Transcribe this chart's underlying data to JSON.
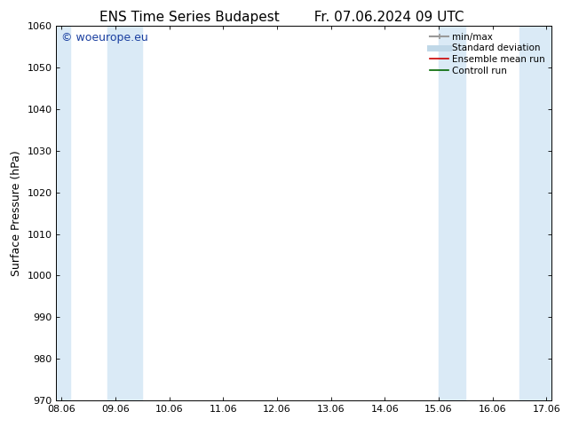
{
  "title_left": "ENS Time Series Budapest",
  "title_right": "Fr. 07.06.2024 09 UTC",
  "ylabel": "Surface Pressure (hPa)",
  "ylim": [
    970,
    1060
  ],
  "yticks": [
    970,
    980,
    990,
    1000,
    1010,
    1020,
    1030,
    1040,
    1050,
    1060
  ],
  "xtick_labels": [
    "08.06",
    "09.06",
    "10.06",
    "11.06",
    "12.06",
    "13.06",
    "14.06",
    "15.06",
    "16.06",
    "17.06"
  ],
  "xlim_min": 0,
  "xlim_max": 9,
  "xtick_positions": [
    0,
    1,
    2,
    3,
    4,
    5,
    6,
    7,
    8,
    9
  ],
  "shaded_bands": [
    {
      "xmin": -0.1,
      "xmax": 0.15,
      "color": "#daeaf6"
    },
    {
      "xmin": 0.85,
      "xmax": 1.5,
      "color": "#daeaf6"
    },
    {
      "xmin": 7.0,
      "xmax": 7.5,
      "color": "#daeaf6"
    },
    {
      "xmin": 8.5,
      "xmax": 9.1,
      "color": "#daeaf6"
    }
  ],
  "watermark_text": "© woeurope.eu",
  "watermark_color": "#1a3fa0",
  "background_color": "#ffffff",
  "legend_entries": [
    {
      "label": "min/max",
      "color": "#999999",
      "linestyle": "solid",
      "linewidth": 1.5
    },
    {
      "label": "Standard deviation",
      "color": "#c0d8e8",
      "linestyle": "solid",
      "linewidth": 5
    },
    {
      "label": "Ensemble mean run",
      "color": "#cc0000",
      "linestyle": "solid",
      "linewidth": 1.2
    },
    {
      "label": "Controll run",
      "color": "#006600",
      "linestyle": "solid",
      "linewidth": 1.2
    }
  ],
  "title_fontsize": 11,
  "ylabel_fontsize": 9,
  "tick_fontsize": 8,
  "legend_fontsize": 7.5,
  "watermark_fontsize": 9
}
